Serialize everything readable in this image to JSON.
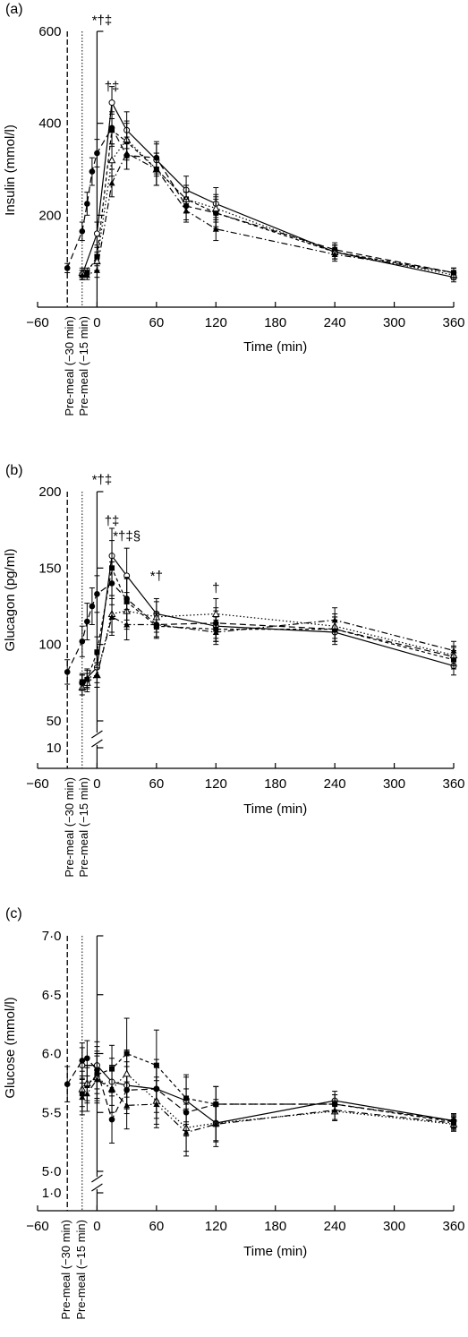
{
  "chart_data": [
    {
      "panel_label": "(a)",
      "type": "line",
      "ylabel": "Insulin (mmol/l)",
      "xlabel": "Time (min)",
      "xlim": [
        -60,
        360
      ],
      "ylim": [
        0,
        600
      ],
      "x_ticks": [
        "−60",
        "0",
        "60",
        "120",
        "180",
        "240",
        "300",
        "360"
      ],
      "y_ticks": [
        "200",
        "400",
        "600"
      ],
      "premeal_labels": [
        "Pre-meal (−30 min)",
        "Pre-meal (−15 min)"
      ],
      "annotations": [
        {
          "text": "*†‡",
          "x": 5,
          "y": 615
        },
        {
          "text": "†‡",
          "x": 15,
          "y": 470
        }
      ],
      "series": [
        {
          "style": "solid",
          "marker": "open-circle",
          "x": [
            -15,
            0,
            15,
            30,
            60,
            90,
            120,
            240,
            360
          ],
          "y": [
            70,
            160,
            445,
            385,
            320,
            255,
            225,
            120,
            65
          ],
          "err": [
            10,
            25,
            35,
            40,
            35,
            30,
            35,
            15,
            10
          ]
        },
        {
          "style": "dashed",
          "marker": "filled-circle",
          "x": [
            -30,
            -15,
            -10,
            -5,
            0,
            15,
            30,
            60,
            90,
            120,
            240,
            360
          ],
          "y": [
            85,
            165,
            225,
            295,
            335,
            390,
            330,
            325,
            220,
            205,
            125,
            75
          ],
          "err": [
            10,
            20,
            25,
            30,
            30,
            35,
            30,
            35,
            30,
            35,
            15,
            10
          ]
        },
        {
          "style": "short-dash",
          "marker": "filled-square",
          "x": [
            -15,
            -10,
            0,
            15,
            30,
            60,
            90,
            120,
            240,
            360
          ],
          "y": [
            70,
            75,
            110,
            385,
            360,
            300,
            235,
            205,
            120,
            75
          ],
          "err": [
            10,
            10,
            20,
            35,
            40,
            35,
            30,
            30,
            15,
            10
          ]
        },
        {
          "style": "dotted",
          "marker": "open-triangle",
          "x": [
            -15,
            0,
            15,
            30,
            60,
            90,
            120,
            240,
            360
          ],
          "y": [
            75,
            100,
            320,
            365,
            300,
            235,
            215,
            120,
            70
          ],
          "err": [
            10,
            20,
            35,
            40,
            35,
            30,
            30,
            15,
            10
          ]
        },
        {
          "style": "dash-dot",
          "marker": "filled-triangle",
          "x": [
            -15,
            -10,
            0,
            15,
            30,
            60,
            90,
            120,
            240,
            360
          ],
          "y": [
            70,
            70,
            80,
            270,
            335,
            300,
            210,
            170,
            115,
            75
          ],
          "err": [
            10,
            10,
            15,
            30,
            35,
            35,
            25,
            25,
            15,
            10
          ]
        }
      ]
    },
    {
      "panel_label": "(b)",
      "type": "line",
      "ylabel": "Glucagon (pg/ml)",
      "xlabel": "Time (min)",
      "xlim": [
        -60,
        360
      ],
      "ylim": [
        10,
        200
      ],
      "axis_break": [
        10,
        50
      ],
      "x_ticks": [
        "−60",
        "0",
        "60",
        "120",
        "180",
        "240",
        "300",
        "360"
      ],
      "y_ticks": [
        "10",
        "50",
        "100",
        "150",
        "200"
      ],
      "premeal_labels": [
        "Pre-meal (−30 min)",
        "Pre-meal (−15 min)"
      ],
      "annotations": [
        {
          "text": "*†‡",
          "x": 5,
          "y": 205
        },
        {
          "text": "†‡",
          "x": 15,
          "y": 178
        },
        {
          "text": "*†‡§",
          "x": 30,
          "y": 168
        },
        {
          "text": "*†",
          "x": 60,
          "y": 142
        },
        {
          "text": "†",
          "x": 120,
          "y": 134
        }
      ],
      "series": [
        {
          "style": "solid",
          "marker": "open-circle",
          "x": [
            -15,
            0,
            15,
            30,
            60,
            120,
            240,
            360
          ],
          "y": [
            75,
            85,
            158,
            145,
            120,
            112,
            108,
            86
          ],
          "err": [
            5,
            10,
            18,
            18,
            10,
            10,
            8,
            6
          ]
        },
        {
          "style": "dashed",
          "marker": "filled-circle",
          "x": [
            -30,
            -15,
            -10,
            -5,
            0,
            15,
            30,
            60,
            120,
            240,
            360
          ],
          "y": [
            82,
            102,
            115,
            125,
            133,
            140,
            130,
            113,
            114,
            110,
            92
          ],
          "err": [
            8,
            10,
            12,
            12,
            12,
            14,
            14,
            8,
            10,
            8,
            6
          ]
        },
        {
          "style": "short-dash",
          "marker": "filled-square",
          "x": [
            -15,
            -10,
            0,
            15,
            30,
            60,
            120,
            240,
            360
          ],
          "y": [
            75,
            77,
            95,
            150,
            128,
            112,
            110,
            110,
            90
          ],
          "err": [
            5,
            6,
            10,
            18,
            15,
            8,
            8,
            8,
            6
          ]
        },
        {
          "style": "dotted",
          "marker": "open-triangle",
          "x": [
            -15,
            -10,
            0,
            15,
            30,
            60,
            120,
            240,
            360
          ],
          "y": [
            72,
            75,
            80,
            120,
            122,
            118,
            120,
            112,
            93
          ],
          "err": [
            5,
            6,
            8,
            12,
            12,
            10,
            10,
            8,
            6
          ]
        },
        {
          "style": "dash-dot",
          "marker": "filled-triangle",
          "x": [
            -15,
            -10,
            0,
            15,
            30,
            60,
            120,
            240,
            360
          ],
          "y": [
            76,
            78,
            80,
            118,
            113,
            113,
            108,
            116,
            96
          ],
          "err": [
            5,
            6,
            8,
            12,
            10,
            8,
            8,
            8,
            6
          ]
        }
      ]
    },
    {
      "panel_label": "(c)",
      "type": "line",
      "ylabel": "Glucose (mmol/l)",
      "xlabel": "Time (min)",
      "xlim": [
        -60,
        360
      ],
      "ylim": [
        1.0,
        7.0
      ],
      "axis_break": [
        1.0,
        5.0
      ],
      "x_ticks": [
        "−60",
        "0",
        "60",
        "120",
        "180",
        "240",
        "300",
        "360"
      ],
      "y_ticks": [
        "1·0",
        "5·0",
        "5·5",
        "6·0",
        "6·5",
        "7·0"
      ],
      "premeal_labels": [
        "Pre-meal (−30 min)",
        "Pre-meal (−15 min)"
      ],
      "annotations": [],
      "series": [
        {
          "style": "solid",
          "marker": "open-circle",
          "x": [
            -15,
            0,
            15,
            30,
            60,
            90,
            120,
            240,
            360
          ],
          "y": [
            5.9,
            5.9,
            5.76,
            5.73,
            5.7,
            5.6,
            5.41,
            5.6,
            5.43
          ],
          "err": [
            0.15,
            0.2,
            0.2,
            0.2,
            0.2,
            0.2,
            0.2,
            0.08,
            0.06
          ]
        },
        {
          "style": "dashed",
          "marker": "filled-circle",
          "x": [
            -30,
            -15,
            -10,
            0,
            15,
            30,
            60,
            90,
            120,
            240,
            360
          ],
          "y": [
            5.74,
            5.94,
            5.96,
            5.86,
            5.44,
            5.69,
            5.7,
            5.5,
            5.57,
            5.57,
            5.43
          ],
          "err": [
            0.15,
            0.15,
            0.15,
            0.2,
            0.2,
            0.2,
            0.25,
            0.2,
            0.15,
            0.08,
            0.06
          ]
        },
        {
          "style": "short-dash",
          "marker": "filled-square",
          "x": [
            -15,
            -10,
            0,
            15,
            30,
            60,
            90,
            120,
            240,
            360
          ],
          "y": [
            5.66,
            5.73,
            5.82,
            5.87,
            6.0,
            5.9,
            5.62,
            5.57,
            5.57,
            5.42
          ],
          "err": [
            0.15,
            0.15,
            0.2,
            0.2,
            0.3,
            0.3,
            0.2,
            0.15,
            0.08,
            0.06
          ]
        },
        {
          "style": "dotted",
          "marker": "open-triangle",
          "x": [
            -15,
            -10,
            0,
            15,
            30,
            60,
            90,
            120,
            240,
            360
          ],
          "y": [
            5.7,
            5.75,
            5.8,
            5.7,
            5.83,
            5.6,
            5.37,
            5.41,
            5.51,
            5.4
          ],
          "err": [
            0.15,
            0.15,
            0.2,
            0.2,
            0.2,
            0.2,
            0.2,
            0.15,
            0.08,
            0.06
          ]
        },
        {
          "style": "dash-dot",
          "marker": "filled-triangle",
          "x": [
            -15,
            -10,
            0,
            15,
            30,
            60,
            90,
            120,
            240,
            360
          ],
          "y": [
            5.63,
            5.66,
            5.78,
            5.7,
            5.56,
            5.57,
            5.33,
            5.4,
            5.52,
            5.41
          ],
          "err": [
            0.15,
            0.15,
            0.2,
            0.2,
            0.2,
            0.2,
            0.2,
            0.15,
            0.08,
            0.06
          ]
        }
      ]
    }
  ]
}
